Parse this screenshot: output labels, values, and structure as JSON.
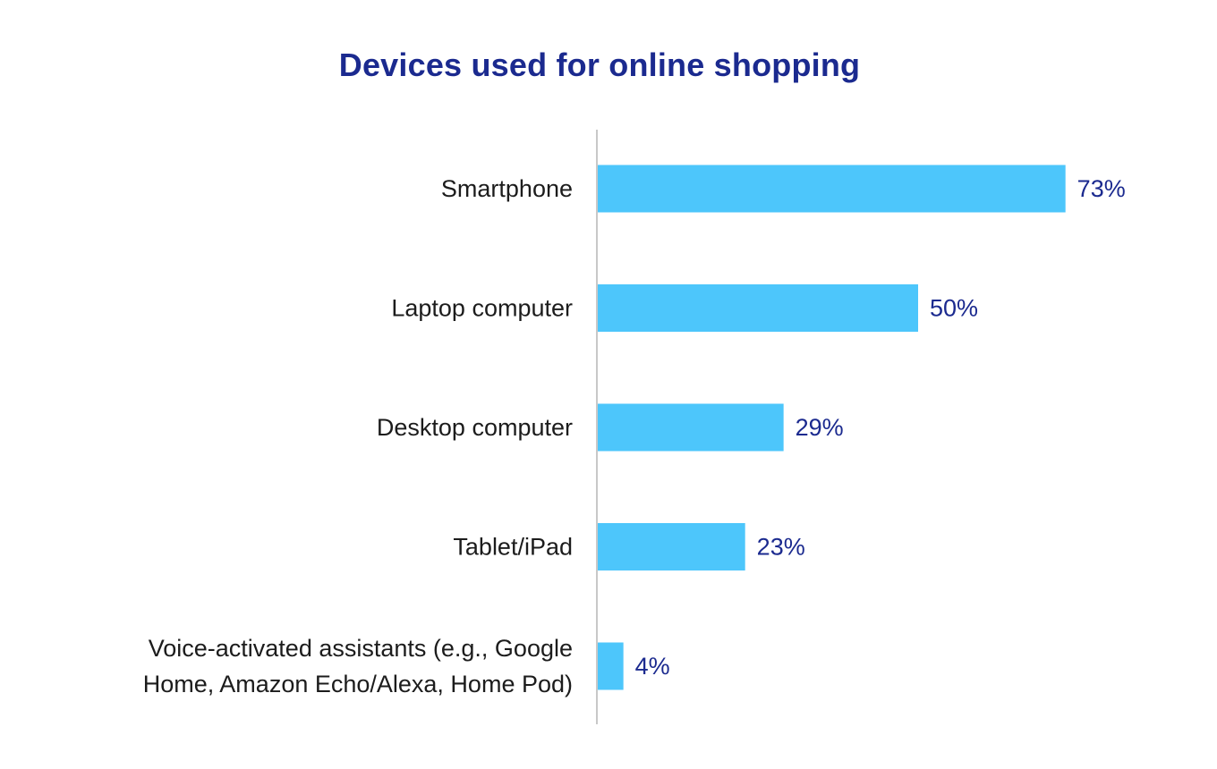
{
  "chart_data": {
    "type": "bar",
    "orientation": "horizontal",
    "title": "Devices used for online shopping",
    "categories": [
      [
        "Smartphone"
      ],
      [
        "Laptop computer"
      ],
      [
        "Desktop computer"
      ],
      [
        "Tablet/iPad"
      ],
      [
        "Voice-activated assistants (e.g., Google",
        "Home, Amazon Echo/Alexa, Home Pod)"
      ]
    ],
    "values": [
      73,
      50,
      29,
      23,
      4
    ],
    "value_labels": [
      "73%",
      "50%",
      "29%",
      "23%",
      "4%"
    ],
    "xlim": [
      0,
      100
    ],
    "grid": false,
    "legend": "none",
    "colors": {
      "bar": "#4dc6fb",
      "value_text": "#1b2a8f",
      "title": "#1b2a8f",
      "axis": "#c8c8c8"
    }
  }
}
